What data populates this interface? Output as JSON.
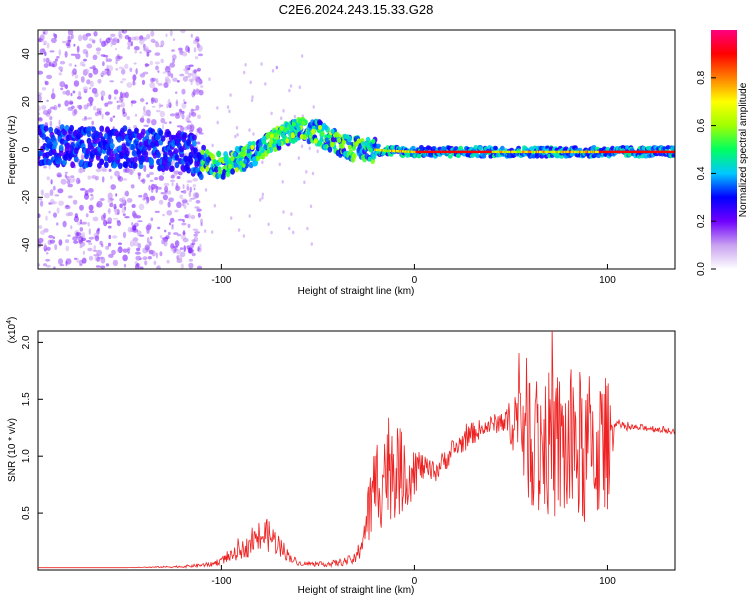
{
  "title": "C2E6.2024.243.15.33.G28",
  "chart_data": [
    {
      "type": "heatmap",
      "xlabel": "Height of straight line (km)",
      "ylabel": "Frequency (Hz)",
      "xlim": [
        -195,
        135
      ],
      "ylim": [
        -50,
        50
      ],
      "xticks": [
        -100,
        0,
        100
      ],
      "xtick_labels": [
        "-100",
        "0",
        "100"
      ],
      "yticks": [
        -40,
        -20,
        0,
        20,
        40
      ],
      "ytick_labels": [
        "-40",
        "-20",
        "0",
        "20",
        "40"
      ],
      "colorbar": {
        "label": "Normalized spectral amplitude",
        "range": [
          0,
          1
        ],
        "ticks": [
          0.0,
          0.2,
          0.4,
          0.6,
          0.8
        ],
        "tick_labels": [
          "0.0",
          "0.2",
          "0.4",
          "0.6",
          "0.8"
        ],
        "colors": [
          "#ffffff",
          "#c8a0f0",
          "#7000ff",
          "#0000ff",
          "#00c8ff",
          "#00ff60",
          "#a0ff00",
          "#ffff00",
          "#ff8000",
          "#ff0000",
          "#ff0080"
        ]
      },
      "ridge": {
        "x": [
          -195,
          -170,
          -140,
          -115,
          -100,
          -90,
          -80,
          -70,
          -60,
          -50,
          -40,
          -30,
          -22,
          -15,
          0,
          20,
          50,
          80,
          100,
          135
        ],
        "freq": [
          2,
          1,
          1,
          -2,
          -7,
          -4,
          0,
          5,
          8,
          7,
          3,
          0,
          0,
          -0.5,
          -1,
          -1,
          -1,
          -1,
          -1,
          -1
        ]
      },
      "grid": false
    },
    {
      "type": "line",
      "xlabel": "Height of straight line (km)",
      "ylabel": "SNR (10 * v/v)",
      "yscale_label": "(x10^4)",
      "xlim": [
        -195,
        135
      ],
      "ylim": [
        0.0,
        2.1
      ],
      "xticks": [
        -100,
        0,
        100
      ],
      "xtick_labels": [
        "-100",
        "0",
        "100"
      ],
      "yticks": [
        0.5,
        1.0,
        1.5,
        2.0
      ],
      "ytick_labels": [
        "0.5",
        "1.0",
        "1.5",
        "2.0"
      ],
      "series": [
        {
          "color": "#ee2222",
          "x": [
            -195,
            -150,
            -120,
            -105,
            -95,
            -85,
            -80,
            -75,
            -70,
            -65,
            -60,
            -50,
            -40,
            -30,
            -25,
            -20,
            -15,
            -10,
            -5,
            0,
            5,
            10,
            20,
            30,
            40,
            45,
            50,
            55,
            60,
            70,
            80,
            90,
            100,
            104,
            110,
            120,
            135
          ],
          "y": [
            0.02,
            0.02,
            0.03,
            0.05,
            0.12,
            0.22,
            0.3,
            0.3,
            0.22,
            0.12,
            0.06,
            0.05,
            0.06,
            0.1,
            0.4,
            0.75,
            0.9,
            0.95,
            0.8,
            0.9,
            0.9,
            0.85,
            1.05,
            1.2,
            1.28,
            1.3,
            1.3,
            1.35,
            1.2,
            1.1,
            1.05,
            1.05,
            1.1,
            1.3,
            1.25,
            1.25,
            1.22
          ],
          "envelope": [
            0,
            0,
            0.01,
            0.02,
            0.05,
            0.1,
            0.15,
            0.15,
            0.1,
            0.05,
            0.02,
            0.02,
            0.03,
            0.05,
            0.25,
            0.45,
            0.5,
            0.5,
            0.3,
            0.25,
            0.1,
            0.1,
            0.1,
            0.1,
            0.08,
            0.1,
            0.2,
            0.55,
            0.65,
            0.65,
            0.75,
            0.7,
            0.6,
            0.04,
            0.03,
            0.03,
            0.03
          ]
        }
      ],
      "grid": false
    }
  ]
}
